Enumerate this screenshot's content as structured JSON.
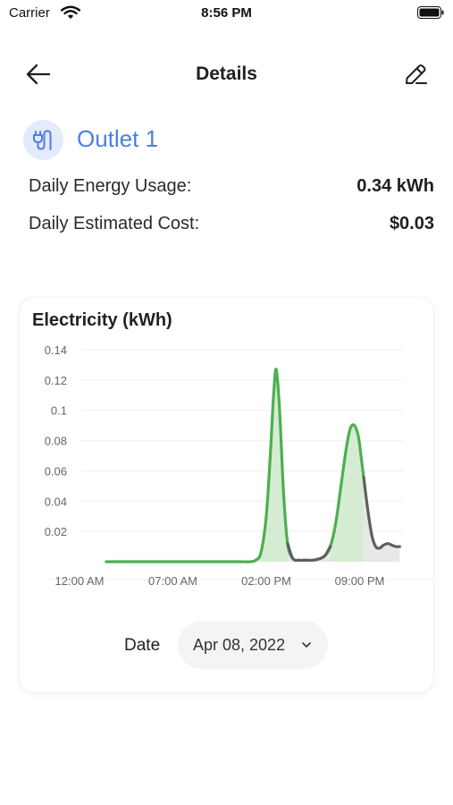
{
  "status_bar": {
    "carrier": "Carrier",
    "time": "8:56 PM"
  },
  "nav": {
    "title": "Details"
  },
  "device": {
    "name": "Outlet 1",
    "icon": "plug-icon",
    "accent": "#4a7fe6"
  },
  "stats": {
    "energy_label": "Daily Energy Usage:",
    "energy_value": "0.34 kWh",
    "cost_label": "Daily Estimated Cost:",
    "cost_value": "$0.03"
  },
  "chart_data": {
    "type": "area",
    "title": "Electricity (kWh)",
    "ylabel": "",
    "xlabel": "",
    "ytick_labels": [
      "0.14",
      "0.12",
      "0.1",
      "0.08",
      "0.06",
      "0.04",
      "0.02"
    ],
    "yticks": [
      0.14,
      0.12,
      0.1,
      0.08,
      0.06,
      0.04,
      0.02
    ],
    "ylim": [
      0,
      0.14
    ],
    "xtick_labels": [
      "12:00 AM",
      "07:00 AM",
      "02:00 PM",
      "09:00 PM"
    ],
    "xticks": [
      0,
      7,
      14,
      21
    ],
    "xlim": [
      0,
      24
    ],
    "grid": true,
    "series": [
      {
        "color": "#4caf50",
        "fill": "#d5ecd2",
        "x": [
          2,
          4,
          6,
          8,
          10,
          11,
          12,
          12.8,
          13.2,
          13.6,
          14,
          14.3,
          14.55,
          14.75,
          15,
          15.3,
          15.6,
          16,
          16.5,
          17,
          17.5,
          18,
          18.4,
          18.8,
          19.2,
          19.6,
          20,
          20.3,
          20.6,
          20.9,
          21.1,
          21.3
        ],
        "y": [
          0,
          0,
          0,
          0,
          0,
          0,
          0,
          0,
          0.001,
          0.006,
          0.03,
          0.07,
          0.11,
          0.127,
          0.1,
          0.045,
          0.012,
          0.002,
          0.001,
          0.001,
          0.001,
          0.002,
          0.004,
          0.01,
          0.025,
          0.05,
          0.075,
          0.088,
          0.09,
          0.083,
          0.07,
          0.056
        ]
      },
      {
        "color": "#5f5f5f",
        "fill": "#e8e8e8",
        "x": [
          15.6,
          16,
          16.5,
          17,
          17.5,
          18,
          18.4,
          18.8
        ],
        "y": [
          0.012,
          0.002,
          0.001,
          0.001,
          0.001,
          0.002,
          0.004,
          0.01
        ]
      },
      {
        "color": "#5f5f5f",
        "fill": "#e8e8e8",
        "x": [
          21.3,
          21.6,
          21.9,
          22.2,
          22.5,
          22.8,
          23.1,
          23.4,
          23.7,
          24
        ],
        "y": [
          0.056,
          0.035,
          0.018,
          0.01,
          0.009,
          0.011,
          0.012,
          0.011,
          0.01,
          0.01
        ]
      }
    ]
  },
  "date_filter": {
    "label": "Date",
    "value": "Apr 08, 2022"
  }
}
